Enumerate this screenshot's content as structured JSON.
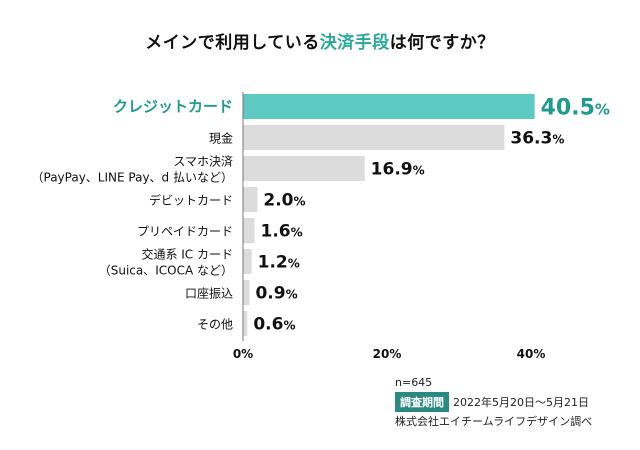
{
  "title": {
    "part1": "メインで利用している",
    "highlight": "決済手段",
    "part2": "は何ですか？"
  },
  "colors": {
    "accent": "#5ec9c0",
    "accent_text": "#1f9a8c",
    "bar": "#dcdcdc",
    "badge": "#2a8a80"
  },
  "chart_data": {
    "type": "bar",
    "orientation": "horizontal",
    "title": "メインで利用している決済手段は何ですか？",
    "categories": [
      [
        "クレジットカード"
      ],
      [
        "現金"
      ],
      [
        "スマホ決済",
        "（PayPay、LINE Pay、d 払いなど）"
      ],
      [
        "デビットカード"
      ],
      [
        "プリペイドカード"
      ],
      [
        "交通系 IC カード",
        "（Suica、ICOCA など）"
      ],
      [
        "口座振込"
      ],
      [
        "その他"
      ]
    ],
    "values": [
      40.5,
      36.3,
      16.9,
      2.0,
      1.6,
      1.2,
      0.9,
      0.6
    ],
    "value_labels": [
      "40.5",
      "36.3",
      "16.9",
      "2.0",
      "1.6",
      "1.2",
      "0.9",
      "0.6"
    ],
    "unit": "%",
    "highlight_index": 0,
    "xlim": [
      0,
      40
    ],
    "xticks": [
      "0%",
      "20%",
      "40%"
    ],
    "xtick_values": [
      0,
      20,
      40
    ],
    "grid": false
  },
  "meta": {
    "n": "n=645",
    "period_label": "調査期間",
    "period_value": "2022年5月20日～5月21日",
    "source": "株式会社エイチームライフデザイン調べ"
  }
}
